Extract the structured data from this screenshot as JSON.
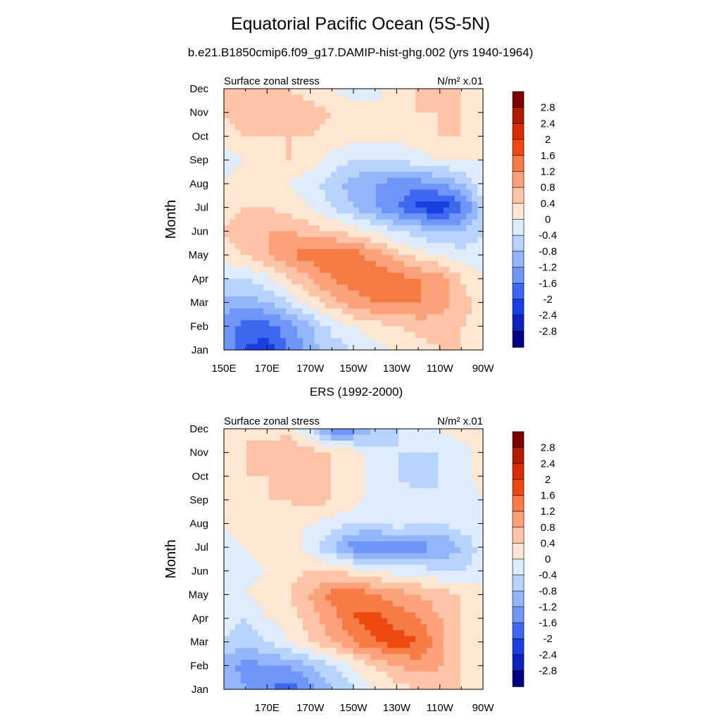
{
  "title": "Equatorial Pacific Ocean (5S-5N)",
  "subtitle": "b.e21.B1850cmip6.f09_g17.DAMIP-hist-ghg.002 (yrs 1940-1964)",
  "colorbar": {
    "labels": [
      "2.8",
      "2.4",
      "2",
      "1.6",
      "1.2",
      "0.8",
      "0.4",
      "0",
      "-0.4",
      "-0.8",
      "-1.2",
      "-1.6",
      "-2",
      "-2.4",
      "-2.8"
    ],
    "colors": [
      "#7a0000",
      "#b01c00",
      "#d82c00",
      "#ee4a10",
      "#f77b45",
      "#fba27a",
      "#fcc3a6",
      "#fde6d2",
      "#ddebfa",
      "#b8d3fb",
      "#93b6fb",
      "#6f95f8",
      "#3f68f0",
      "#1a3fe0",
      "#0f22b8",
      "#000080"
    ]
  },
  "chart_data": [
    {
      "type": "heatmap",
      "title": "",
      "left_label": "Surface zonal stress",
      "units": "N/m² x.01",
      "xlabel": "",
      "ylabel": "Month",
      "x": [
        150,
        160,
        170,
        180,
        190,
        200,
        210,
        220,
        230,
        240,
        250,
        260,
        270
      ],
      "x_tick_labels": [
        "150E",
        "170E",
        "170W",
        "150W",
        "130W",
        "110W",
        "90W"
      ],
      "y": [
        "Jan",
        "Feb",
        "Mar",
        "Apr",
        "May",
        "Jun",
        "Jul",
        "Aug",
        "Sep",
        "Oct",
        "Nov",
        "Dec"
      ],
      "values": [
        [
          -1.2,
          -2.0,
          -2.2,
          -1.6,
          -1.0,
          -0.6,
          -0.4,
          -0.1,
          0.0,
          0.2,
          0.4,
          0.4,
          0.2
        ],
        [
          -1.4,
          -1.8,
          -1.8,
          -1.4,
          -0.8,
          -0.3,
          0.0,
          0.2,
          0.4,
          0.6,
          0.6,
          0.4,
          0.2
        ],
        [
          -1.0,
          -1.0,
          -0.8,
          -0.4,
          0.2,
          0.6,
          1.0,
          1.2,
          1.2,
          1.2,
          1.0,
          0.6,
          0.2
        ],
        [
          -0.4,
          -0.4,
          -0.1,
          0.4,
          0.8,
          1.2,
          1.4,
          1.6,
          1.4,
          1.2,
          1.0,
          0.4,
          0.0
        ],
        [
          0.2,
          0.4,
          0.8,
          1.2,
          1.4,
          1.6,
          1.4,
          1.0,
          0.6,
          0.2,
          0.0,
          -0.2,
          -0.2
        ],
        [
          0.4,
          0.6,
          0.8,
          0.8,
          0.6,
          0.4,
          0.2,
          0.0,
          -0.4,
          -0.6,
          -0.8,
          -0.8,
          -0.4
        ],
        [
          0.2,
          0.4,
          0.4,
          0.2,
          0.0,
          -0.4,
          -0.8,
          -1.2,
          -1.6,
          -2.1,
          -2.3,
          -1.8,
          -0.4
        ],
        [
          0.0,
          0.2,
          0.2,
          0.0,
          -0.2,
          -0.6,
          -1.0,
          -1.2,
          -1.4,
          -1.4,
          -1.2,
          -0.8,
          -0.2
        ],
        [
          -0.2,
          0.0,
          0.2,
          0.4,
          0.2,
          -0.2,
          -0.4,
          -0.4,
          -0.4,
          -0.2,
          0.0,
          0.0,
          0.0
        ],
        [
          0.2,
          0.4,
          0.4,
          0.4,
          0.4,
          0.2,
          0.2,
          0.2,
          0.2,
          0.2,
          0.4,
          0.4,
          0.2
        ],
        [
          0.4,
          0.6,
          0.8,
          0.6,
          0.6,
          0.4,
          0.2,
          0.2,
          0.2,
          0.4,
          0.4,
          0.4,
          0.4
        ],
        [
          0.4,
          0.4,
          0.4,
          0.4,
          0.2,
          0.0,
          -0.2,
          -0.2,
          0.2,
          0.4,
          0.4,
          0.4,
          0.2
        ]
      ]
    },
    {
      "type": "heatmap",
      "title": "ERS (1992-2000)",
      "left_label": "Surface zonal stress",
      "units": "N/m² x.01",
      "xlabel": "",
      "ylabel": "Month",
      "x": [
        150,
        160,
        170,
        180,
        190,
        200,
        210,
        220,
        230,
        240,
        250,
        260,
        270
      ],
      "x_tick_labels": [
        "170E",
        "170W",
        "150W",
        "130W",
        "110W",
        "90W"
      ],
      "y": [
        "Jan",
        "Feb",
        "Mar",
        "Apr",
        "May",
        "Jun",
        "Jul",
        "Aug",
        "Sep",
        "Oct",
        "Nov",
        "Dec"
      ],
      "values": [
        [
          -0.8,
          -1.2,
          -1.6,
          -1.8,
          -1.4,
          -0.8,
          -0.4,
          0.0,
          0.2,
          0.4,
          0.6,
          0.4,
          0.2
        ],
        [
          -1.0,
          -1.4,
          -1.2,
          -1.2,
          -0.8,
          -0.4,
          0.0,
          0.4,
          0.8,
          1.0,
          0.8,
          0.4,
          0.0
        ],
        [
          -0.4,
          -0.6,
          -0.4,
          0.0,
          0.4,
          0.8,
          1.2,
          1.6,
          1.8,
          1.6,
          1.0,
          0.4,
          0.2
        ],
        [
          -0.2,
          -0.4,
          0.0,
          0.2,
          0.6,
          1.0,
          1.6,
          1.8,
          1.4,
          1.2,
          0.8,
          0.4,
          0.2
        ],
        [
          0.0,
          0.0,
          0.2,
          0.4,
          0.8,
          1.4,
          1.6,
          1.2,
          1.0,
          0.8,
          0.6,
          0.4,
          0.2
        ],
        [
          -0.4,
          -0.2,
          0.0,
          0.2,
          0.4,
          0.4,
          0.2,
          0.0,
          -0.2,
          -0.2,
          -0.4,
          -0.4,
          -0.2
        ],
        [
          -0.2,
          0.0,
          0.2,
          0.2,
          -0.2,
          -0.8,
          -1.4,
          -1.6,
          -1.4,
          -1.4,
          -1.2,
          -0.8,
          -0.2
        ],
        [
          0.0,
          0.2,
          0.2,
          0.2,
          0.0,
          -0.2,
          -0.4,
          -0.4,
          -0.2,
          -0.4,
          -0.4,
          -0.2,
          0.0
        ],
        [
          0.2,
          0.2,
          0.4,
          0.4,
          0.6,
          0.4,
          0.2,
          -0.2,
          -0.2,
          -0.2,
          -0.4,
          -0.2,
          0.0
        ],
        [
          0.2,
          0.4,
          0.4,
          0.4,
          0.6,
          0.4,
          0.4,
          -0.2,
          -0.4,
          -0.6,
          -0.4,
          -0.2,
          0.2
        ],
        [
          0.4,
          0.4,
          0.6,
          0.8,
          0.6,
          0.4,
          0.2,
          -0.2,
          -0.4,
          -0.4,
          -0.4,
          -0.2,
          0.2
        ],
        [
          0.2,
          0.4,
          0.2,
          0.2,
          -0.4,
          -1.6,
          -1.4,
          -0.8,
          -0.4,
          -0.2,
          0.0,
          0.2,
          0.2
        ]
      ]
    }
  ]
}
